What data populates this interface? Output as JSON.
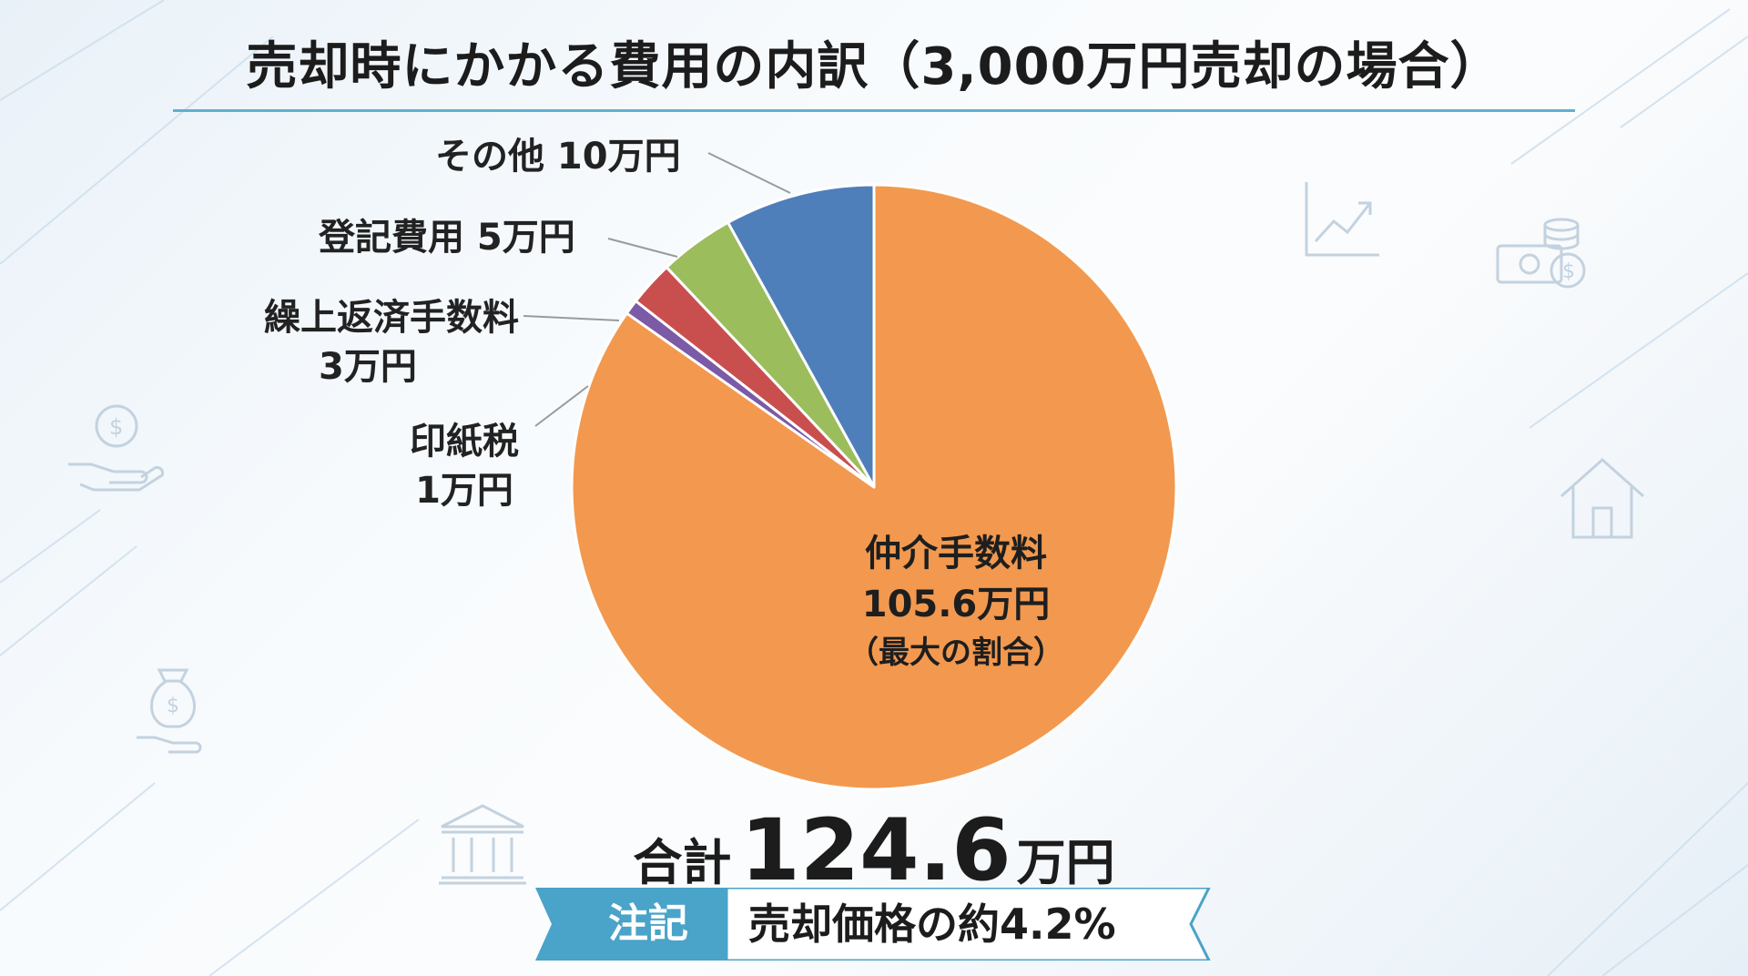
{
  "title": "売却時にかかる費用の内訳（3,000万円売却の場合）",
  "chart_data": {
    "type": "pie",
    "title": "売却時にかかる費用の内訳（3,000万円売却の場合）",
    "unit": "万円",
    "slices": [
      {
        "name": "仲介手数料",
        "value": 105.6,
        "label": "105.6万円",
        "note": "（最大の割合）",
        "color": "#f2994f"
      },
      {
        "name": "印紙税",
        "value": 1,
        "label": "1万円",
        "color": "#7b5aa6"
      },
      {
        "name": "繰上返済手数料",
        "value": 3,
        "label": "3万円",
        "color": "#c94f4f"
      },
      {
        "name": "登記費用",
        "value": 5,
        "label": "5万円",
        "color": "#9bbd5c"
      },
      {
        "name": "その他",
        "value": 10,
        "label": "10万円",
        "color": "#4f7fba"
      }
    ]
  },
  "labels": {
    "other": "その他 10万円",
    "registration": "登記費用 5万円",
    "prepay_line1": "繰上返済手数料",
    "prepay_line2": "3万円",
    "stamp_line1": "印紙税",
    "stamp_line2": "1万円",
    "main_line1": "仲介手数料",
    "main_line2": "105.6万円",
    "main_line3": "（最大の割合）"
  },
  "total": {
    "prefix": "合計",
    "value": "124.6",
    "unit": "万円"
  },
  "note": {
    "tag": "注記",
    "text": "売却価格の約4.2%"
  },
  "colors": {
    "accent": "#5fb0cf",
    "note_tag": "#4aa3c8"
  },
  "icons": [
    "line-chart-icon",
    "cash-coins-icon",
    "house-icon",
    "hand-coin-icon",
    "money-bag-hand-icon",
    "bank-icon"
  ]
}
